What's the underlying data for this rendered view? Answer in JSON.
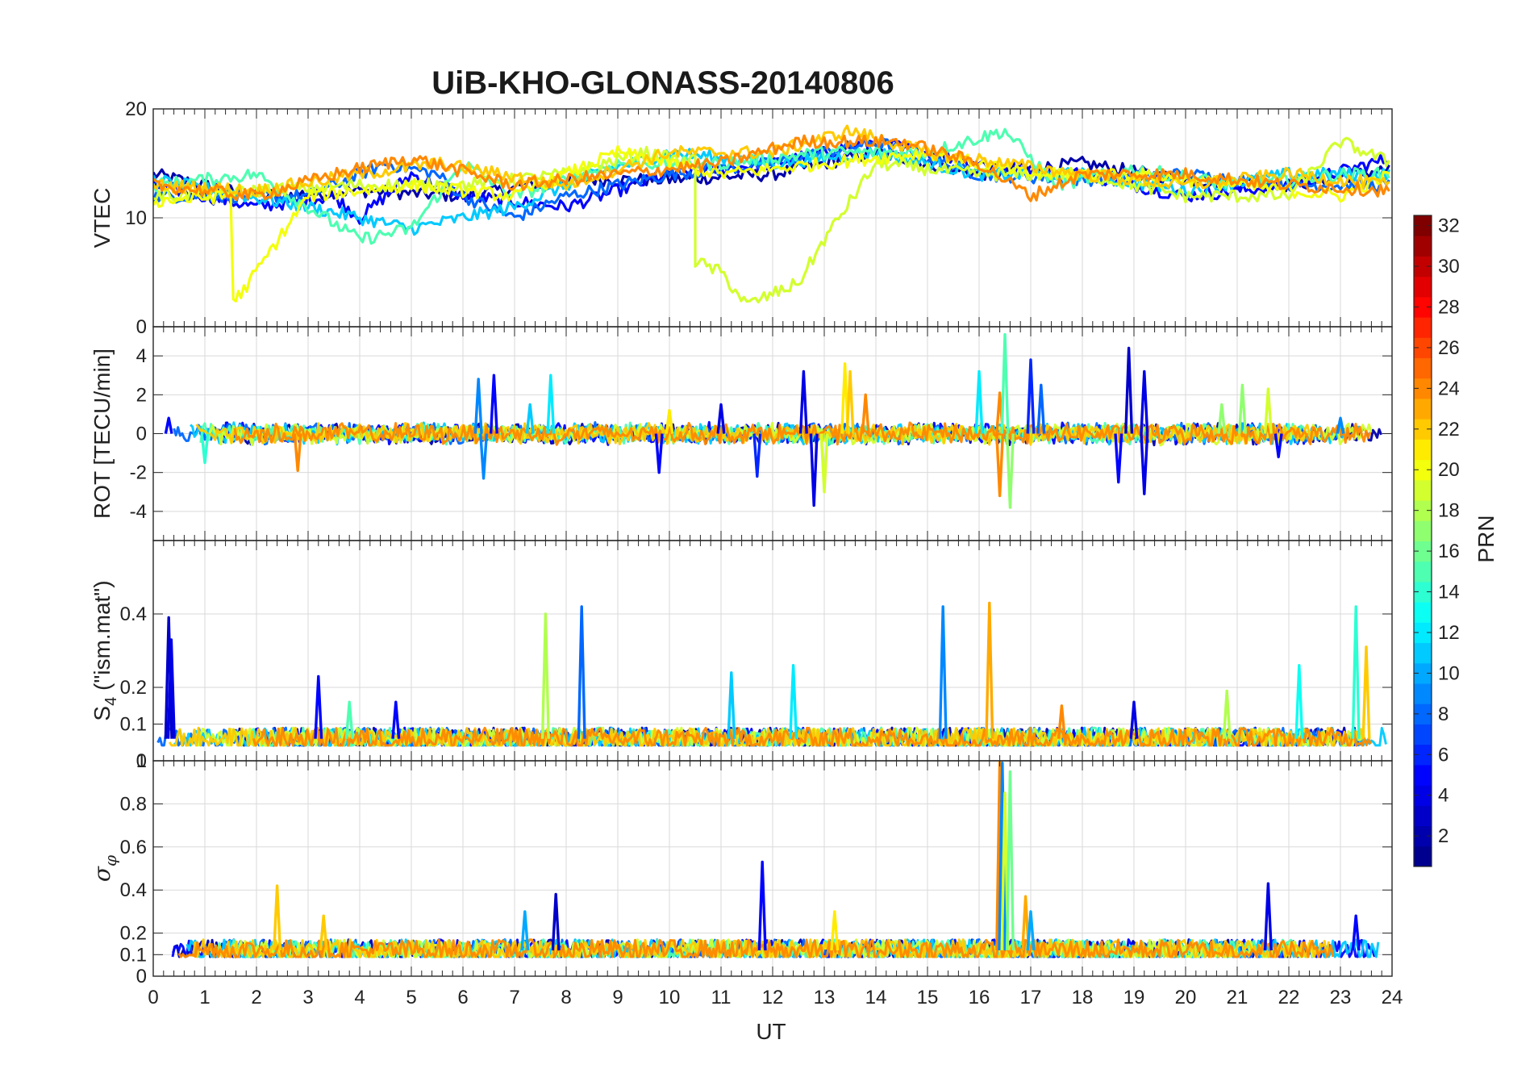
{
  "chart_data": {
    "type": "line",
    "title": "UiB-KHO-GLONASS-20140806",
    "xlabel": "UT",
    "x_ticks": [
      "0",
      "1",
      "2",
      "3",
      "4",
      "5",
      "6",
      "7",
      "8",
      "9",
      "10",
      "11",
      "12",
      "13",
      "14",
      "15",
      "16",
      "17",
      "18",
      "19",
      "20",
      "21",
      "22",
      "23",
      "24"
    ],
    "xlim": [
      0,
      24
    ],
    "colorbar": {
      "label": "PRN",
      "range": [
        1,
        32
      ],
      "ticks": [
        "2",
        "4",
        "6",
        "8",
        "10",
        "12",
        "14",
        "16",
        "18",
        "20",
        "22",
        "24",
        "26",
        "28",
        "30",
        "32"
      ],
      "colormap": [
        "#00008f",
        "#0000ff",
        "#0080ff",
        "#00ffff",
        "#80ff80",
        "#ffff00",
        "#ff8000",
        "#ff0000",
        "#800000"
      ]
    },
    "panels": [
      {
        "id": "vtec",
        "ylabel": "VTEC",
        "ylim": [
          0,
          20
        ],
        "y_ticks": [
          0,
          10,
          20
        ],
        "y_tick_labels": [
          "0",
          "10",
          "20"
        ],
        "series": [
          {
            "prn": 2,
            "values": [
              [
                0,
                14
              ],
              [
                2,
                12
              ],
              [
                4,
                12.5
              ],
              [
                6,
                12
              ],
              [
                8,
                13.5
              ],
              [
                10,
                13.5
              ],
              [
                12,
                14
              ],
              [
                14,
                16
              ],
              [
                16,
                14
              ],
              [
                18,
                15
              ],
              [
                20,
                13.5
              ],
              [
                22,
                13
              ],
              [
                24,
                14.5
              ]
            ]
          },
          {
            "prn": 5,
            "values": [
              [
                0,
                13
              ],
              [
                2,
                11
              ],
              [
                3.5,
                12
              ],
              [
                4,
                10
              ],
              [
                5,
                14
              ],
              [
                6,
                12
              ],
              [
                8,
                11
              ],
              [
                10,
                14
              ],
              [
                12,
                15
              ],
              [
                14,
                17
              ],
              [
                16,
                15
              ],
              [
                18,
                14
              ],
              [
                20,
                12
              ],
              [
                22,
                13
              ],
              [
                24,
                15.5
              ]
            ]
          },
          {
            "prn": 8,
            "values": [
              [
                0,
                12
              ],
              [
                3,
                12
              ],
              [
                4.5,
                15
              ],
              [
                5.5,
                14
              ],
              [
                6,
                12
              ],
              [
                7,
                10
              ],
              [
                8,
                12
              ],
              [
                10,
                14
              ],
              [
                12,
                15
              ],
              [
                14,
                17
              ],
              [
                16,
                14
              ],
              [
                18,
                13.5
              ],
              [
                20,
                14
              ],
              [
                22,
                13
              ],
              [
                24,
                13
              ]
            ]
          },
          {
            "prn": 11,
            "values": [
              [
                0,
                13.5
              ],
              [
                3,
                11
              ],
              [
                5,
                9
              ],
              [
                7,
                11
              ],
              [
                8.5,
                14
              ],
              [
                10,
                16
              ],
              [
                12,
                15
              ],
              [
                14,
                16
              ],
              [
                16,
                14
              ],
              [
                18,
                14
              ],
              [
                20,
                12.5
              ],
              [
                22,
                14
              ],
              [
                24,
                14
              ]
            ]
          },
          {
            "prn": 15,
            "values": [
              [
                0,
                13
              ],
              [
                2,
                14
              ],
              [
                3,
                11
              ],
              [
                4,
                8
              ],
              [
                5,
                9
              ],
              [
                6,
                15
              ],
              [
                7,
                12
              ],
              [
                9,
                15
              ],
              [
                11,
                15
              ],
              [
                13,
                16
              ],
              [
                15,
                16
              ],
              [
                16.5,
                18
              ],
              [
                17.5,
                13
              ],
              [
                19,
                14.5
              ],
              [
                21,
                13
              ],
              [
                23,
                14
              ],
              [
                24,
                14
              ]
            ]
          },
          {
            "prn": 19,
            "values": [
              [
                0,
                12
              ],
              [
                2,
                12.5
              ],
              [
                4,
                13
              ],
              [
                6,
                13
              ],
              [
                8,
                14
              ],
              [
                9.5,
                16
              ],
              [
                10.4,
                15
              ],
              [
                10.5,
                16
              ],
              [
                10.5,
                6
              ],
              [
                11,
                5
              ],
              [
                11.5,
                2
              ],
              [
                12.5,
                4
              ],
              [
                13,
                8
              ],
              [
                14,
                15
              ],
              [
                16,
                14
              ],
              [
                18,
                14
              ],
              [
                20,
                12
              ],
              [
                22,
                12
              ],
              [
                23,
                17
              ],
              [
                24,
                15
              ]
            ]
          },
          {
            "prn": 20,
            "values": [
              [
                0,
                11.5
              ],
              [
                1.5,
                12
              ],
              [
                1.55,
                2.5
              ],
              [
                1.7,
                3
              ],
              [
                3,
                12
              ],
              [
                5,
                13
              ],
              [
                7,
                12
              ],
              [
                9,
                16
              ],
              [
                11,
                14
              ],
              [
                13,
                15
              ],
              [
                15,
                16
              ],
              [
                17,
                14
              ],
              [
                19,
                14
              ],
              [
                21,
                13
              ],
              [
                23,
                12
              ],
              [
                24,
                14
              ]
            ]
          },
          {
            "prn": 22,
            "values": [
              [
                0,
                13
              ],
              [
                2,
                12.5
              ],
              [
                4,
                14
              ],
              [
                5.5,
                15
              ],
              [
                8,
                13
              ],
              [
                10,
                16
              ],
              [
                12,
                16
              ],
              [
                13.5,
                18
              ],
              [
                15,
                16
              ],
              [
                16.5,
                15
              ],
              [
                18,
                14
              ],
              [
                20,
                13
              ],
              [
                22,
                14
              ],
              [
                24,
                13
              ]
            ]
          },
          {
            "prn": 24,
            "values": [
              [
                0,
                13
              ],
              [
                2,
                12
              ],
              [
                3.5,
                14
              ],
              [
                5,
                15.5
              ],
              [
                7,
                13
              ],
              [
                9,
                14
              ],
              [
                11,
                15
              ],
              [
                12.5,
                17
              ],
              [
                14.5,
                17
              ],
              [
                16,
                15
              ],
              [
                17,
                12
              ],
              [
                18,
                14
              ],
              [
                20,
                14
              ],
              [
                22,
                13
              ],
              [
                24,
                12.5
              ]
            ]
          }
        ]
      },
      {
        "id": "rot",
        "ylabel": "ROT [TECU/min]",
        "ylim": [
          -5.5,
          5.5
        ],
        "y_ticks": [
          -4,
          -2,
          0,
          2,
          4
        ],
        "y_tick_labels": [
          "-4",
          "-2",
          "0",
          "2",
          "4"
        ],
        "baseline": 0,
        "noise_amplitude": 0.5,
        "spikes": [
          {
            "x": 0.3,
            "y": 0.8,
            "prn": 5
          },
          {
            "x": 1.0,
            "y": -1.5,
            "prn": 14
          },
          {
            "x": 2.8,
            "y": -1.9,
            "prn": 24
          },
          {
            "x": 6.3,
            "y": 2.8,
            "prn": 9
          },
          {
            "x": 6.6,
            "y": 3.0,
            "prn": 5
          },
          {
            "x": 6.4,
            "y": -2.3,
            "prn": 9
          },
          {
            "x": 7.3,
            "y": 1.5,
            "prn": 11
          },
          {
            "x": 7.7,
            "y": 3.0,
            "prn": 12
          },
          {
            "x": 9.8,
            "y": -2.0,
            "prn": 5
          },
          {
            "x": 10.0,
            "y": 1.2,
            "prn": 21
          },
          {
            "x": 11.0,
            "y": 1.5,
            "prn": 4
          },
          {
            "x": 11.7,
            "y": -2.2,
            "prn": 6
          },
          {
            "x": 12.6,
            "y": 3.2,
            "prn": 4
          },
          {
            "x": 12.8,
            "y": -3.7,
            "prn": 4
          },
          {
            "x": 13.0,
            "y": -3.0,
            "prn": 19
          },
          {
            "x": 13.4,
            "y": 3.6,
            "prn": 21
          },
          {
            "x": 13.5,
            "y": 3.2,
            "prn": 22
          },
          {
            "x": 13.8,
            "y": 2.0,
            "prn": 24
          },
          {
            "x": 16.0,
            "y": 3.2,
            "prn": 12
          },
          {
            "x": 16.4,
            "y": 2.1,
            "prn": 24
          },
          {
            "x": 16.4,
            "y": -3.2,
            "prn": 24
          },
          {
            "x": 16.5,
            "y": 5.1,
            "prn": 15
          },
          {
            "x": 16.6,
            "y": -3.8,
            "prn": 17
          },
          {
            "x": 17.0,
            "y": 3.8,
            "prn": 6
          },
          {
            "x": 17.2,
            "y": 2.5,
            "prn": 8
          },
          {
            "x": 18.7,
            "y": -2.5,
            "prn": 5
          },
          {
            "x": 18.9,
            "y": 4.4,
            "prn": 3
          },
          {
            "x": 19.2,
            "y": -3.1,
            "prn": 4
          },
          {
            "x": 19.2,
            "y": 3.2,
            "prn": 4
          },
          {
            "x": 20.7,
            "y": 1.5,
            "prn": 17
          },
          {
            "x": 21.1,
            "y": 2.5,
            "prn": 17
          },
          {
            "x": 21.6,
            "y": 2.3,
            "prn": 19
          },
          {
            "x": 21.8,
            "y": -1.2,
            "prn": 5
          },
          {
            "x": 23.0,
            "y": 0.8,
            "prn": 9
          }
        ]
      },
      {
        "id": "s4",
        "ylabel": "S4 (\"ism.mat\")",
        "ylabel_parts": [
          "S",
          "4",
          " (\"ism.mat\")"
        ],
        "ylim": [
          0,
          0.6
        ],
        "y_ticks": [
          0,
          0.1,
          0.2,
          0.4
        ],
        "y_tick_labels": [
          "0",
          "0.1",
          "0.2",
          "0.4"
        ],
        "baseline": 0.06,
        "noise_amplitude": 0.03,
        "spikes": [
          {
            "x": 0.3,
            "y": 0.39,
            "prn": 3
          },
          {
            "x": 0.35,
            "y": 0.33,
            "prn": 4
          },
          {
            "x": 3.2,
            "y": 0.23,
            "prn": 5
          },
          {
            "x": 3.8,
            "y": 0.16,
            "prn": 15
          },
          {
            "x": 4.7,
            "y": 0.16,
            "prn": 5
          },
          {
            "x": 7.6,
            "y": 0.4,
            "prn": 18
          },
          {
            "x": 8.3,
            "y": 0.42,
            "prn": 8
          },
          {
            "x": 11.2,
            "y": 0.24,
            "prn": 11
          },
          {
            "x": 12.4,
            "y": 0.26,
            "prn": 12
          },
          {
            "x": 15.3,
            "y": 0.42,
            "prn": 9
          },
          {
            "x": 16.2,
            "y": 0.43,
            "prn": 23
          },
          {
            "x": 17.6,
            "y": 0.15,
            "prn": 24
          },
          {
            "x": 19.0,
            "y": 0.16,
            "prn": 4
          },
          {
            "x": 20.8,
            "y": 0.19,
            "prn": 18
          },
          {
            "x": 22.2,
            "y": 0.26,
            "prn": 13
          },
          {
            "x": 23.3,
            "y": 0.42,
            "prn": 14
          },
          {
            "x": 23.5,
            "y": 0.31,
            "prn": 22
          }
        ]
      },
      {
        "id": "sigma_phi",
        "ylabel": "σφ",
        "ylabel_parts": [
          "σ",
          "φ"
        ],
        "ylim": [
          0,
          1
        ],
        "y_ticks": [
          0,
          0.1,
          0.2,
          0.4,
          0.6,
          0.8,
          1
        ],
        "y_tick_labels": [
          "0",
          "0.1",
          "0.2",
          "0.4",
          "0.6",
          "0.8",
          "1"
        ],
        "baseline": 0.12,
        "noise_amplitude": 0.05,
        "spikes": [
          {
            "x": 2.4,
            "y": 0.42,
            "prn": 22
          },
          {
            "x": 3.3,
            "y": 0.28,
            "prn": 22
          },
          {
            "x": 7.2,
            "y": 0.3,
            "prn": 10
          },
          {
            "x": 7.8,
            "y": 0.38,
            "prn": 3
          },
          {
            "x": 11.8,
            "y": 0.53,
            "prn": 5
          },
          {
            "x": 13.2,
            "y": 0.3,
            "prn": 21
          },
          {
            "x": 16.4,
            "y": 1.0,
            "prn": 24
          },
          {
            "x": 16.45,
            "y": 0.99,
            "prn": 9
          },
          {
            "x": 16.5,
            "y": 0.85,
            "prn": 19
          },
          {
            "x": 16.6,
            "y": 0.95,
            "prn": 16
          },
          {
            "x": 16.9,
            "y": 0.37,
            "prn": 23
          },
          {
            "x": 17.0,
            "y": 0.3,
            "prn": 10
          },
          {
            "x": 21.6,
            "y": 0.43,
            "prn": 4
          },
          {
            "x": 23.3,
            "y": 0.28,
            "prn": 5
          }
        ]
      }
    ]
  }
}
